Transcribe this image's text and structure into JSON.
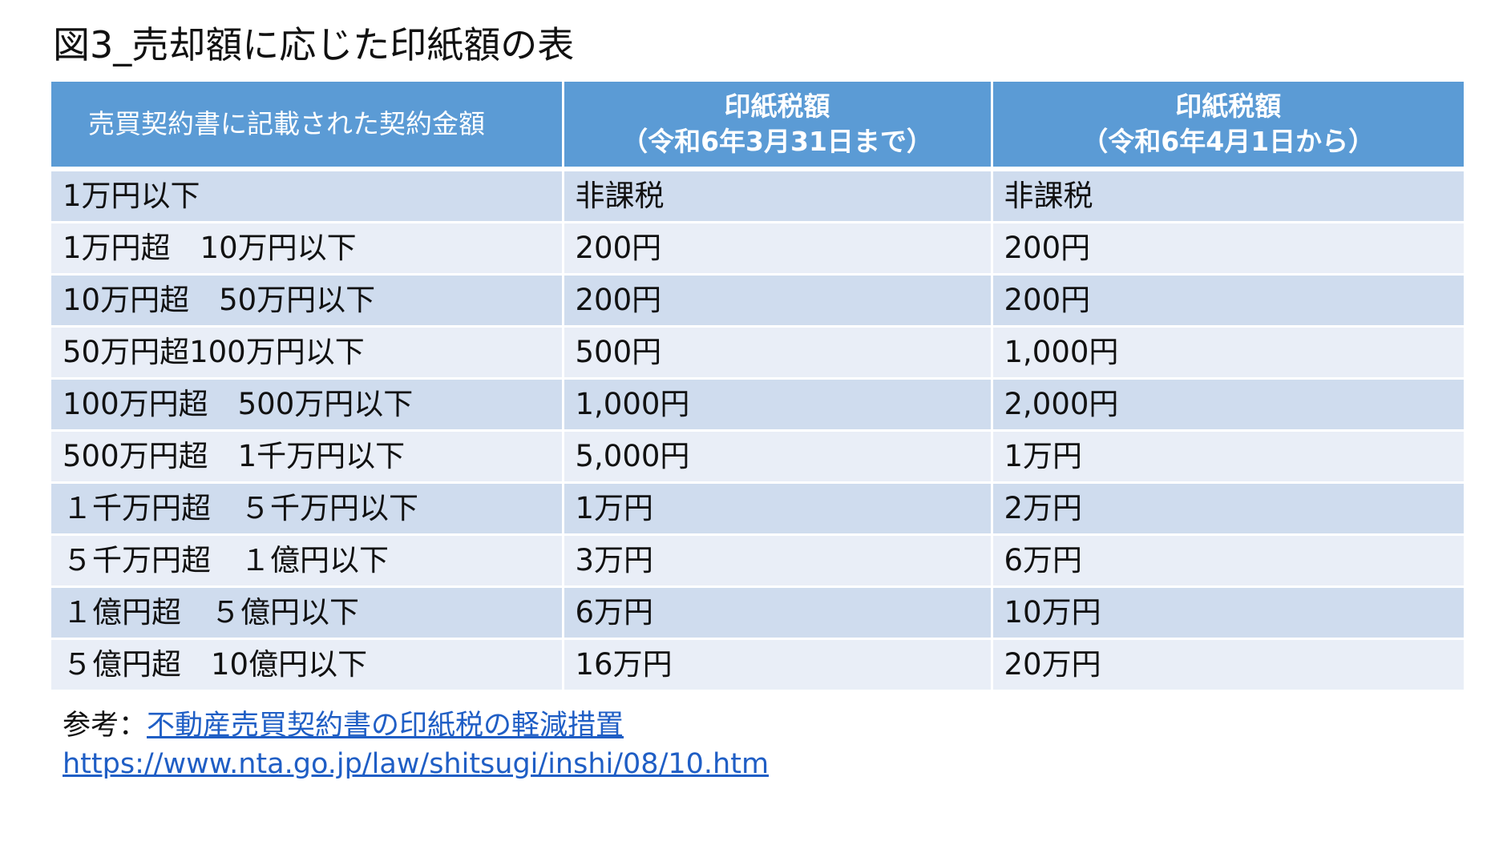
{
  "title": "図3_売却額に応じた印紙額の表",
  "table": {
    "headers": {
      "amount": "売買契約書に記載された契約金額",
      "tax_before_label": "印紙税額",
      "tax_before_period": "（令和6年3月31日まで）",
      "tax_after_label": "印紙税額",
      "tax_after_period": "（令和6年4月1日から）"
    },
    "rows": [
      {
        "amount": "1万円以下",
        "before": "非課税",
        "after": "非課税"
      },
      {
        "amount": "1万円超　10万円以下",
        "before": "200円",
        "after": "200円"
      },
      {
        "amount": "10万円超　50万円以下",
        "before": "200円",
        "after": "200円"
      },
      {
        "amount": "50万円超100万円以下",
        "before": "500円",
        "after": "1,000円"
      },
      {
        "amount": "100万円超　500万円以下",
        "before": "1,000円",
        "after": "2,000円"
      },
      {
        "amount": "500万円超　1千万円以下",
        "before": "5,000円",
        "after": "1万円"
      },
      {
        "amount": "１千万円超　５千万円以下",
        "before": "1万円",
        "after": "2万円"
      },
      {
        "amount": "５千万円超　１億円以下",
        "before": "3万円",
        "after": "6万円"
      },
      {
        "amount": "１億円超　５億円以下",
        "before": "6万円",
        "after": "10万円"
      },
      {
        "amount": "５億円超　10億円以下",
        "before": "16万円",
        "after": "20万円"
      }
    ]
  },
  "reference": {
    "prefix": "参考：",
    "link_text": "不動産売買契約書の印紙税の軽減措置",
    "url_text": "https://www.nta.go.jp/law/shitsugi/inshi/08/10.htm"
  },
  "colors": {
    "header_bg": "#5b9bd5",
    "row_odd_bg": "#cfdcee",
    "row_even_bg": "#e9eef7",
    "link": "#1f5ec5"
  }
}
